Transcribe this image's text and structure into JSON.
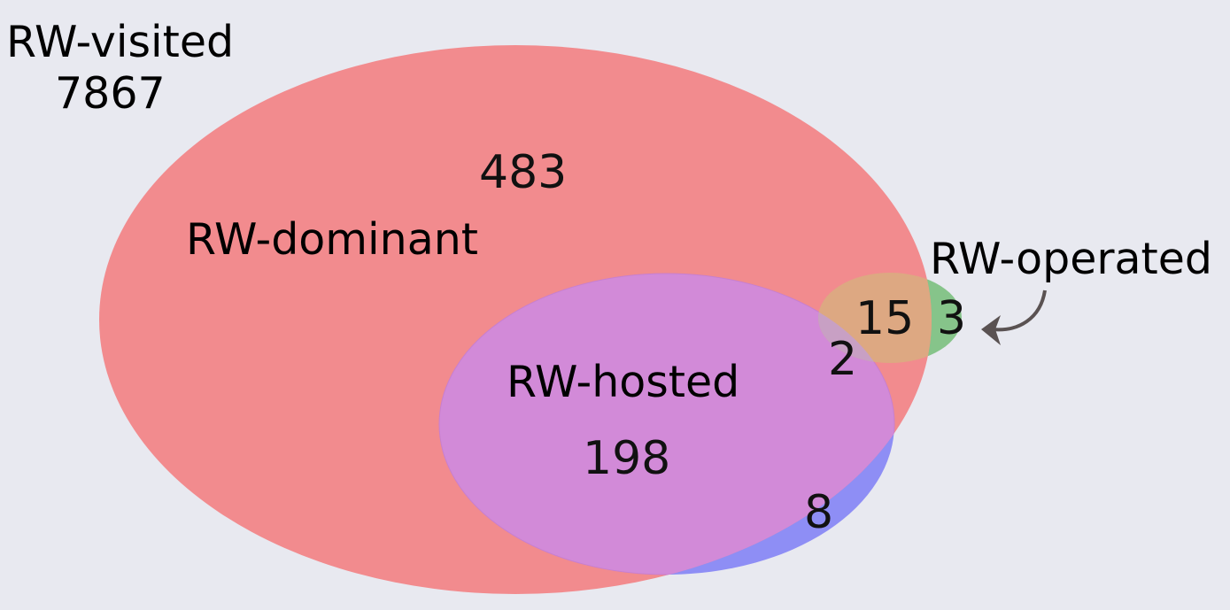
{
  "diagram": {
    "type": "venn",
    "outer_set": {
      "label": "RW-visited",
      "count": "7867"
    },
    "sets": [
      {
        "id": "dominant",
        "label": "RW-dominant",
        "color": "#f28b8e"
      },
      {
        "id": "hosted",
        "label": "RW-hosted",
        "color": "#8e8ef5"
      },
      {
        "id": "operated",
        "label": "RW-operated",
        "color": "#86c48a"
      }
    ],
    "regions": [
      {
        "sets": [
          "dominant"
        ],
        "count": "483"
      },
      {
        "sets": [
          "dominant",
          "hosted"
        ],
        "count": "198"
      },
      {
        "sets": [
          "hosted"
        ],
        "count": "8"
      },
      {
        "sets": [
          "dominant",
          "operated"
        ],
        "count": "15"
      },
      {
        "sets": [
          "dominant",
          "hosted",
          "operated"
        ],
        "count": "2"
      },
      {
        "sets": [
          "operated"
        ],
        "count": "3"
      }
    ],
    "colors": {
      "background": "#e8e9f0",
      "dominant_only": "#f28b8e",
      "hosted_only": "#8e8ef5",
      "dominant_hosted": "#d28ad8",
      "dominant_operated": "#dda882",
      "operated_only": "#86c48a",
      "arrow": "#5a5252"
    }
  }
}
